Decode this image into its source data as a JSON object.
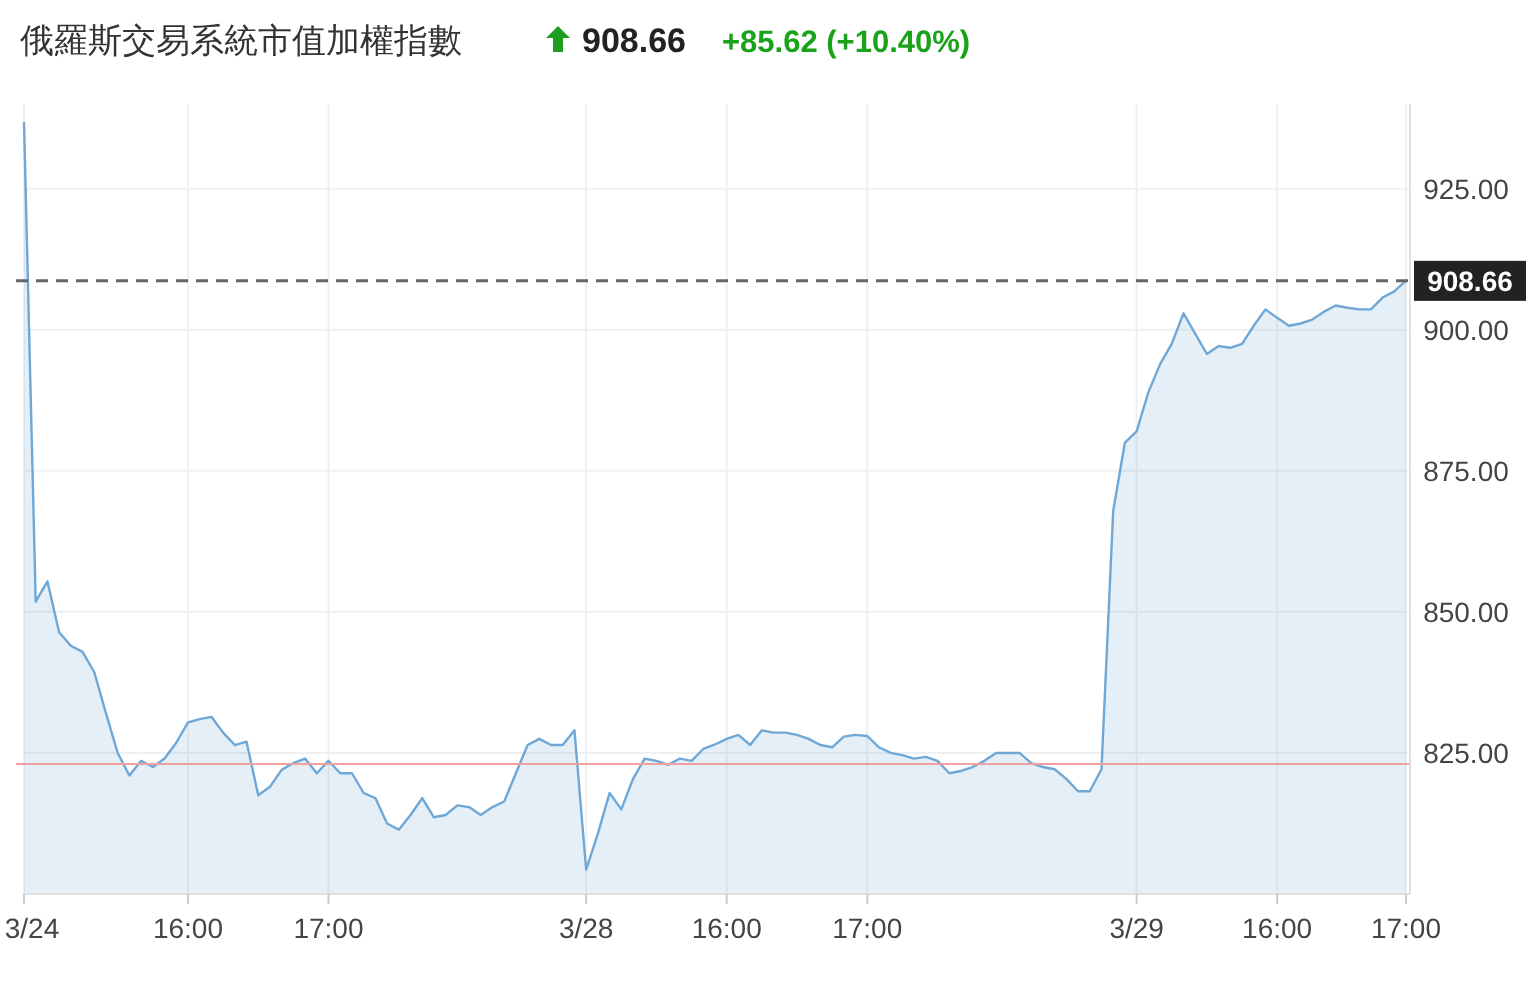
{
  "chart_data": {
    "type": "area",
    "title": "俄羅斯交易系統市值加權指數",
    "annotations": [
      "908.66",
      "+85.62 (+10.40%)"
    ],
    "categories": [
      "3/24",
      null,
      null,
      null,
      null,
      null,
      null,
      null,
      null,
      null,
      null,
      null,
      null,
      null,
      "16:00",
      null,
      null,
      null,
      null,
      null,
      null,
      null,
      null,
      null,
      null,
      null,
      "17:00",
      null,
      null,
      null,
      null,
      null,
      null,
      null,
      null,
      null,
      null,
      null,
      null,
      null,
      null,
      null,
      null,
      null,
      null,
      null,
      null,
      null,
      "3/28",
      null,
      null,
      null,
      null,
      null,
      null,
      null,
      null,
      null,
      null,
      null,
      "16:00",
      null,
      null,
      null,
      null,
      null,
      null,
      null,
      null,
      null,
      null,
      null,
      "17:00",
      null,
      null,
      null,
      null,
      null,
      null,
      null,
      null,
      null,
      null,
      null,
      null,
      null,
      null,
      null,
      null,
      null,
      null,
      null,
      null,
      null,
      null,
      "3/29",
      null,
      null,
      null,
      null,
      null,
      null,
      null,
      null,
      null,
      null,
      null,
      "16:00",
      null,
      null,
      null,
      null,
      null,
      null,
      null,
      null,
      null,
      null,
      "17:00"
    ],
    "series": [
      {
        "color": "#6fa8d6",
        "values": [
          936.8,
          851.8,
          855.4,
          846.4,
          844,
          842.9,
          839.3,
          832,
          825,
          821,
          823.6,
          822.5,
          824,
          826.8,
          830.4,
          831,
          831.4,
          828.6,
          826.4,
          827,
          817.5,
          819,
          822,
          823.2,
          824,
          821.4,
          823.6,
          821.4,
          821.4,
          817.9,
          817,
          812.5,
          811.4,
          814,
          817,
          813.6,
          814,
          815.7,
          815.4,
          814,
          815.4,
          816.4,
          821.4,
          826.4,
          827.5,
          826.4,
          826.4,
          829,
          804.3,
          810.7,
          817.9,
          815,
          820.4,
          824,
          823.6,
          822.9,
          824,
          823.6,
          825.7,
          826.5,
          827.5,
          828.2,
          826.4,
          829,
          828.6,
          828.6,
          828.2,
          827.5,
          826.4,
          826,
          827.9,
          828.2,
          828,
          826,
          825,
          824.6,
          824,
          824.3,
          823.6,
          821.4,
          821.8,
          822.5,
          823.6,
          825,
          825,
          825,
          823.2,
          822.5,
          822.1,
          820.4,
          818.2,
          818.2,
          822.1,
          867.9,
          880,
          882,
          888.9,
          893.9,
          897.5,
          902.9,
          899.3,
          895.7,
          897.1,
          896.8,
          897.5,
          900.7,
          903.6,
          902.1,
          900.7,
          901.1,
          901.8,
          903.2,
          904.3,
          903.9,
          903.6,
          903.6,
          905.7,
          906.8,
          908.7
        ]
      }
    ],
    "ylim": [
      800,
      940
    ],
    "yticks": [
      {
        "value": 825,
        "label": "825.00"
      },
      {
        "value": 850,
        "label": "850.00"
      },
      {
        "value": 875,
        "label": "875.00"
      },
      {
        "value": 900,
        "label": "900.00"
      },
      {
        "value": 925,
        "label": "925.00"
      }
    ],
    "grid": true,
    "ref_lines": [
      {
        "axis": "y",
        "value": 908.66,
        "label": "908.66",
        "color": "#666666",
        "line_style": "dashed"
      },
      {
        "axis": "y",
        "value": 823.04,
        "color": "#f0a0a0",
        "line_style": "solid"
      }
    ]
  }
}
